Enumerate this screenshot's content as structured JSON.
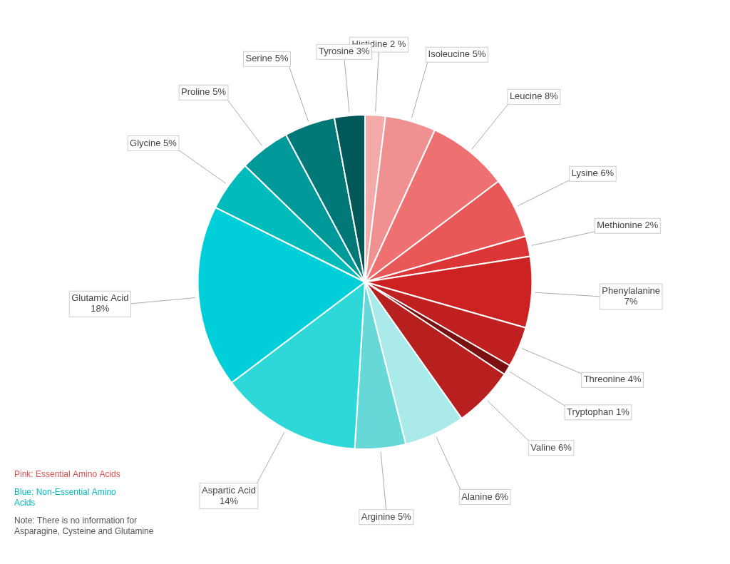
{
  "chart_data": {
    "type": "pie",
    "categories": [
      "Histidine 2 %",
      "Isoleucine 5%",
      "Leucine 8%",
      "Lysine 6%",
      "Methionine 2%",
      "Phenylalanine\n7%",
      "Threonine 4%",
      "Tryptophan 1%",
      "Valine 6%",
      "Alanine 6%",
      "Arginine 5%",
      "Aspartic Acid\n14%",
      "Glutamic Acid\n18%",
      "Glycine 5%",
      "Proline 5%",
      "Serine 5%",
      "Tyrosine 3%"
    ],
    "values": [
      2,
      5,
      8,
      6,
      2,
      7,
      4,
      1,
      6,
      6,
      5,
      14,
      18,
      5,
      5,
      5,
      3
    ],
    "colors": [
      "#F5AAAA",
      "#F09090",
      "#EE7070",
      "#E85858",
      "#DC3535",
      "#CC2222",
      "#C02020",
      "#7A1010",
      "#B82020",
      "#AAEAEA",
      "#66D8D8",
      "#2ED8D8",
      "#00CED8",
      "#00BBBB",
      "#009999",
      "#007878",
      "#005858"
    ],
    "annotations": [
      {
        "text": "Pink: Essential Amino Acids",
        "color": "#E05050"
      },
      {
        "text": "Blue: Non-Essential Amino\nAcids",
        "color": "#00BBBB"
      },
      {
        "text": "Note: There is no information for\nAsparagine, Cysteine and Glutamine",
        "color": "#555555"
      }
    ]
  }
}
